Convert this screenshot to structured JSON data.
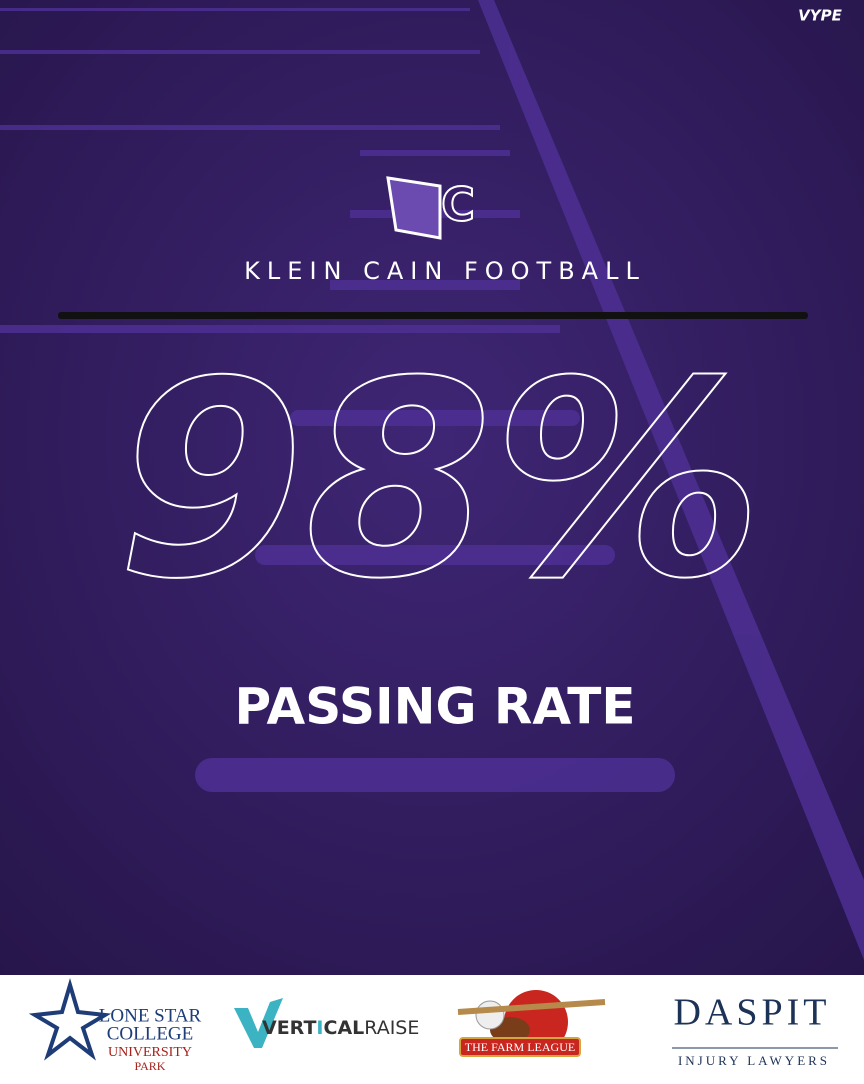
{
  "brand": "VYPE",
  "logo_letter": "C",
  "team": "KLEIN CAIN FOOTBALL",
  "stat": {
    "value": "98%",
    "label": "PASSING RATE"
  },
  "sponsors": [
    {
      "lines": [
        "LONE STAR",
        "COLLEGE",
        "UNIVERSITY",
        "PARK"
      ]
    },
    {
      "parts": [
        "VERT",
        "I",
        "CAL",
        "RAISE"
      ]
    },
    {
      "lines": [
        "THE FARM LEAGUE"
      ]
    },
    {
      "lines": [
        "DASPIT",
        "INJURY LAWYERS"
      ]
    }
  ]
}
